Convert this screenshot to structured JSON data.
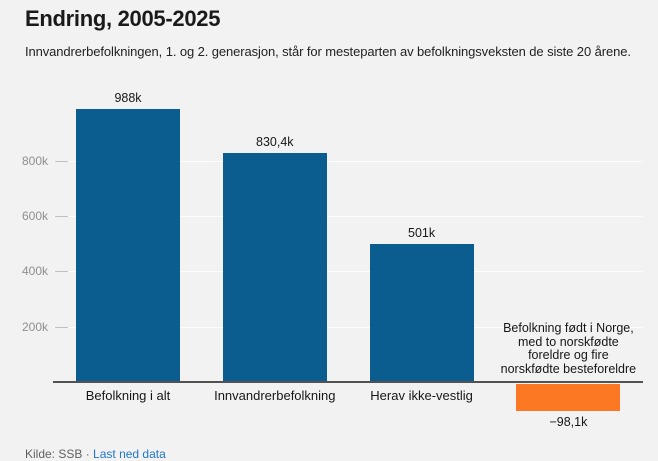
{
  "chart_data": {
    "type": "bar",
    "title": "Endring, 2005-2025",
    "subtitle": "Innvandrerbefolkningen, 1. og 2. generasjon, står for mesteparten av befolkningsveksten de siste 20 årene.",
    "categories": [
      "Befolkning i alt",
      "Innvandrerbefolkning",
      "Herav ikke-vestlig",
      "Befolkning født i Norge, med to norskfødte foreldre og fire norskfødte besteforeldre"
    ],
    "category_label_lines": [
      [
        "Befolkning i alt"
      ],
      [
        "Innvandrerbefolkning"
      ],
      [
        "Herav ikke-vestlig"
      ],
      [
        "Befolkning født i Norge,",
        "med to norskfødte",
        "foreldre og fire",
        "norskfødte besteforeldre"
      ]
    ],
    "values": [
      988,
      830.4,
      501,
      -98.1
    ],
    "value_labels": [
      "988k",
      "830,4k",
      "501k",
      "−98,1k"
    ],
    "unit": "thousands (k)",
    "xlabel": "",
    "ylabel": "",
    "yticks": [
      200,
      400,
      600,
      800
    ],
    "ytick_labels": [
      "200k",
      "400k",
      "600k",
      "800k"
    ],
    "ylim": [
      -130,
      1075
    ],
    "grid": true,
    "legend": false,
    "colors": {
      "positive_bar": "#0c5d8f",
      "negative_bar": "#fd7823",
      "background": "#f2f2f2",
      "axis_line": "#525252",
      "ytick_label": "#8f8f8f",
      "link": "#2277c9"
    }
  },
  "footer": {
    "source": "Kilde: SSB",
    "separator": " · ",
    "download_link": "Last ned data"
  }
}
